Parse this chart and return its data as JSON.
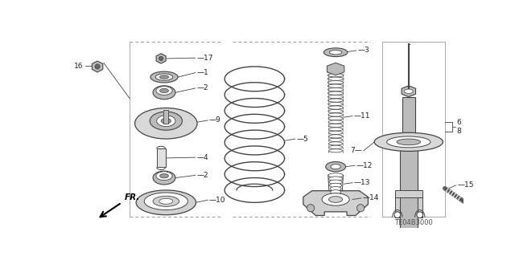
{
  "bg_color": "#ffffff",
  "line_color": "#444444",
  "label_color": "#222222",
  "gray": "#999999",
  "lgray": "#bbbbbb",
  "dgray": "#666666",
  "diagram_code": "TE04B3000",
  "fr_label": "FR.",
  "label_fs": 6.5,
  "border_dash": [
    4,
    3
  ]
}
